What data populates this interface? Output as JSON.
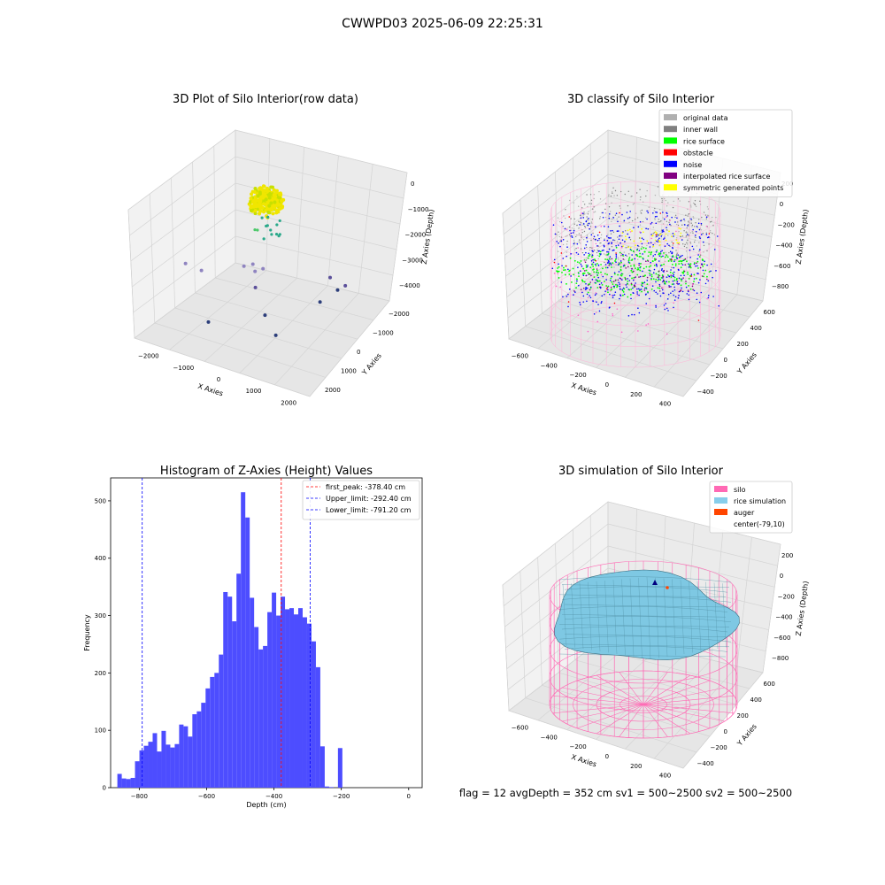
{
  "suptitle": "CWWPD03 2025-06-09 22:25:31",
  "status_line": "flag = 12   avgDepth = 352 cm  sv1 = 500~2500  sv2 = 500~2500",
  "colors": {
    "grid": "#d8d8d8",
    "pane_left": "#f2f2f2",
    "pane_right": "#ebebeb",
    "pane_floor": "#e6e6e6",
    "hist_bar": "#4d4dff",
    "peak_line": "#ff0000",
    "limit_line": "#0000ff",
    "silo_wire": "#ff69b4",
    "rice_fill": "#7ec8e3",
    "rice_edge": "#3a6f80"
  },
  "chart_data": [
    {
      "id": "raw",
      "type": "scatter3d",
      "title": "3D Plot of Silo Interior(row data)",
      "xlabel": "X Axies",
      "ylabel": "Y Axies",
      "zlabel": "Z Axies (Depth)",
      "xticks": [
        "−2000",
        "−1000",
        "0",
        "1000",
        "2000"
      ],
      "yticks": [
        "−2000",
        "−1000",
        "0",
        "1000",
        "2000"
      ],
      "zticks": [
        "0",
        "−1000",
        "−2000",
        "−3000",
        "−4000"
      ],
      "points": [
        {
          "x": -2400,
          "y": -300,
          "z": -3050
        },
        {
          "x": -2200,
          "y": 200,
          "z": -3500
        },
        {
          "x": -1200,
          "y": 800,
          "z": -3350
        },
        {
          "x": -1000,
          "y": 950,
          "z": -3300
        },
        {
          "x": -900,
          "y": 900,
          "z": -3500
        },
        {
          "x": -700,
          "y": 1000,
          "z": -3400
        },
        {
          "x": -600,
          "y": 400,
          "z": -3700
        },
        {
          "x": 1100,
          "y": 1700,
          "z": -3600
        },
        {
          "x": 1400,
          "y": 1600,
          "z": -3900
        },
        {
          "x": 1200,
          "y": 900,
          "z": -3950
        },
        {
          "x": 200,
          "y": -500,
          "z": -3900
        },
        {
          "x": 900,
          "y": -1200,
          "z": -3950
        },
        {
          "x": -1000,
          "y": -1500,
          "z": -4000
        },
        {
          "x": 1600,
          "y": 1700,
          "z": -3750
        }
      ],
      "rice_cluster_depth_range": [
        -300,
        -1800
      ]
    },
    {
      "id": "classify",
      "type": "scatter3d",
      "title": "3D classify of Silo Interior",
      "xlabel": "X Axies",
      "ylabel": "Y Axies",
      "zlabel": "Z Axies (Depth)",
      "xticks": [
        "−600",
        "−400",
        "−200",
        "0",
        "200",
        "400"
      ],
      "yticks": [
        "600",
        "400",
        "200",
        "0",
        "−200",
        "−400"
      ],
      "zticks": [
        "200",
        "0",
        "−200",
        "−400",
        "−600",
        "−800"
      ],
      "legend": [
        {
          "label": "original data",
          "color": "#b0b0b0"
        },
        {
          "label": "inner wall",
          "color": "#808080"
        },
        {
          "label": "rice surface",
          "color": "#00ff00"
        },
        {
          "label": "obstacle",
          "color": "#ff0000"
        },
        {
          "label": "noise",
          "color": "#0000ff"
        },
        {
          "label": "interpolated rice surface",
          "color": "#800080"
        },
        {
          "label": "symmetric generated points",
          "color": "#ffff00"
        }
      ]
    },
    {
      "id": "histogram",
      "type": "bar",
      "title": "Histogram of Z-Axies (Height) Values",
      "xlabel": "Depth (cm)",
      "ylabel": "Frequency",
      "xlim": [
        -885,
        40
      ],
      "ylim": [
        0,
        540
      ],
      "xticks": [
        -800,
        -600,
        -400,
        -200,
        0
      ],
      "xtick_labels": [
        "−800",
        "−600",
        "−400",
        "−200",
        "0"
      ],
      "yticks": [
        0,
        100,
        200,
        300,
        400,
        500
      ],
      "bin_start": -865,
      "bin_width": 13.1,
      "values": [
        24,
        16,
        15,
        17,
        46,
        65,
        73,
        80,
        95,
        63,
        99,
        75,
        70,
        76,
        110,
        107,
        89,
        128,
        133,
        148,
        173,
        193,
        200,
        232,
        341,
        333,
        290,
        373,
        515,
        471,
        331,
        280,
        241,
        247,
        306,
        340,
        300,
        333,
        311,
        313,
        302,
        313,
        297,
        286,
        255,
        210,
        72,
        2,
        1,
        0,
        69
      ],
      "lines": [
        {
          "label": "first_peak: -378.40 cm",
          "x": -378.4,
          "color": "#ff0000"
        },
        {
          "label": "Upper_limit: -292.40 cm",
          "x": -292.4,
          "color": "#0000ff"
        },
        {
          "label": "Lower_limit: -791.20 cm",
          "x": -791.2,
          "color": "#0000ff"
        }
      ]
    },
    {
      "id": "simulation",
      "type": "surface3d",
      "title": "3D simulation of Silo Interior",
      "xlabel": "X Axies",
      "ylabel": "Y Axies",
      "zlabel": "Z Axies (Depth)",
      "xticks": [
        "−600",
        "−400",
        "−200",
        "0",
        "200",
        "400"
      ],
      "yticks": [
        "600",
        "400",
        "200",
        "0",
        "−200",
        "−400"
      ],
      "zticks": [
        "200",
        "0",
        "−200",
        "−400",
        "−600",
        "−800"
      ],
      "legend": [
        {
          "label": "silo",
          "color": "#ff69b4"
        },
        {
          "label": "rice simulation",
          "color": "#87ceeb"
        },
        {
          "label": "auger",
          "color": "#ff4500"
        },
        {
          "label": "center(-79,10)",
          "color": ""
        }
      ]
    }
  ]
}
